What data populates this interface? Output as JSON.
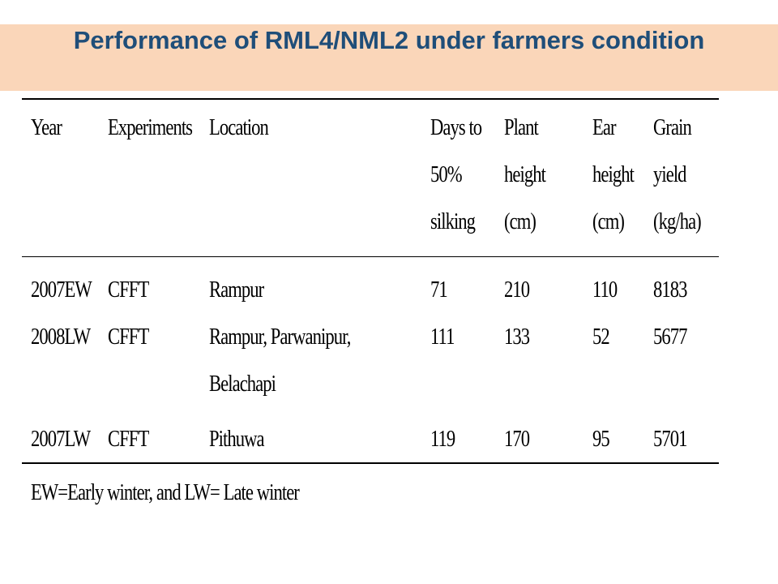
{
  "title": "Performance of RML4/NML2 under farmers condition",
  "table": {
    "headers": {
      "year": "Year",
      "experiments": "Experiments",
      "location": "Location",
      "days": {
        "l1": "Days to",
        "l2": "50%",
        "l3": "silking"
      },
      "plant": {
        "l1": "Plant",
        "l2": "height",
        "l3": "(cm)"
      },
      "ear": {
        "l1": "Ear",
        "l2": "height",
        "l3": "(cm)"
      },
      "grain": {
        "l1": "Grain",
        "l2": "yield",
        "l3": "(kg/ha)"
      }
    },
    "rows": [
      {
        "year": "2007EW",
        "experiment": "CFFT",
        "location": "Rampur",
        "location2": "",
        "days": "71",
        "plant": "210",
        "ear": "110",
        "grain": "8183"
      },
      {
        "year": "2008LW",
        "experiment": "CFFT",
        "location": "Rampur, Parwanipur,",
        "location2": "Belachapi",
        "days": "111",
        "plant": "133",
        "ear": "52",
        "grain": "5677"
      },
      {
        "year": "2007LW",
        "experiment": "CFFT",
        "location": "Pithuwa",
        "location2": "",
        "days": "119",
        "plant": "170",
        "ear": "95",
        "grain": "5701"
      }
    ]
  },
  "footnote": "EW=Early winter, and LW= Late winter"
}
